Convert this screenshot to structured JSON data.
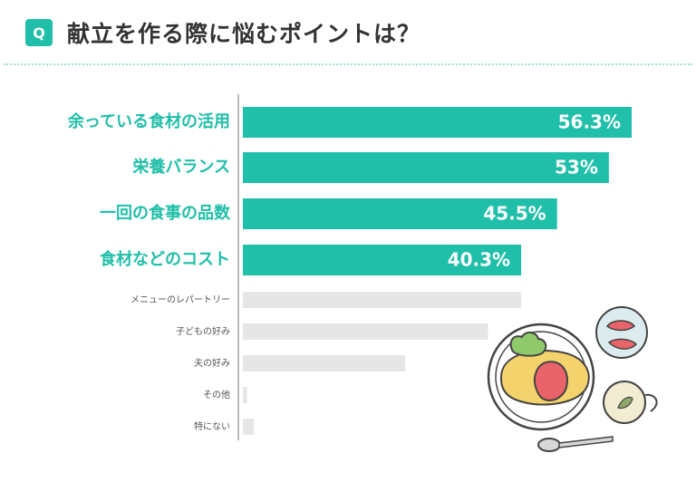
{
  "header": {
    "badge": "Q",
    "title": "献立を作る際に悩むポイントは？"
  },
  "colors": {
    "accent": "#20bfa9",
    "muted_bar": "#e6e6e6",
    "axis": "#bbbbbb"
  },
  "illustration": "food-plate-icon",
  "chart_data": {
    "type": "bar",
    "orientation": "horizontal",
    "categories": [
      "余っている食材の活用",
      "栄養バランス",
      "一回の食事の品数",
      "食材などのコスト",
      "メニューのレパートリー",
      "子どもの好み",
      "夫の好み",
      "その他",
      "特にない"
    ],
    "values": [
      56.3,
      53,
      45.5,
      40.3,
      40.3,
      35.5,
      23.5,
      0.6,
      1.6
    ],
    "value_labels": [
      "56.3%",
      "53%",
      "45.5%",
      "40.3%",
      "",
      "",
      "",
      "",
      ""
    ],
    "highlighted_count": 4,
    "unit": "%",
    "xlim": [
      0,
      100
    ],
    "grid": false,
    "legend": "none"
  }
}
